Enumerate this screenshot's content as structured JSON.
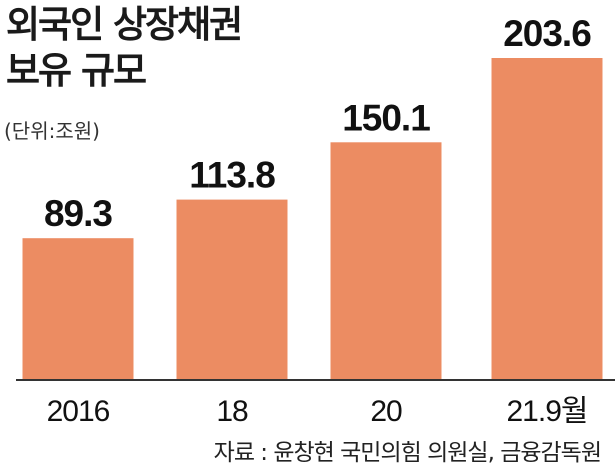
{
  "header": {
    "title_line1": "외국인 상장채권",
    "title_line2": "보유 규모",
    "unit": "(단위:조원)"
  },
  "footer": {
    "source": "자료 : 윤창현 국민의힘 의원실, 금융감독원"
  },
  "colors": {
    "bar": "#ec8c62",
    "axis": "#333333",
    "text": "#111111"
  },
  "chart_data": {
    "type": "bar",
    "title": "외국인 상장채권 보유 규모",
    "unit": "(단위:조원)",
    "xlabel": "",
    "ylabel": "",
    "categories": [
      "2016",
      "18",
      "20",
      "21.9월"
    ],
    "values": [
      89.3,
      113.8,
      150.1,
      203.6
    ],
    "value_labels": [
      "89.3",
      "113.8",
      "150.1",
      "203.6"
    ],
    "ylim": [
      0,
      220
    ],
    "grid": false,
    "legend": "none"
  }
}
